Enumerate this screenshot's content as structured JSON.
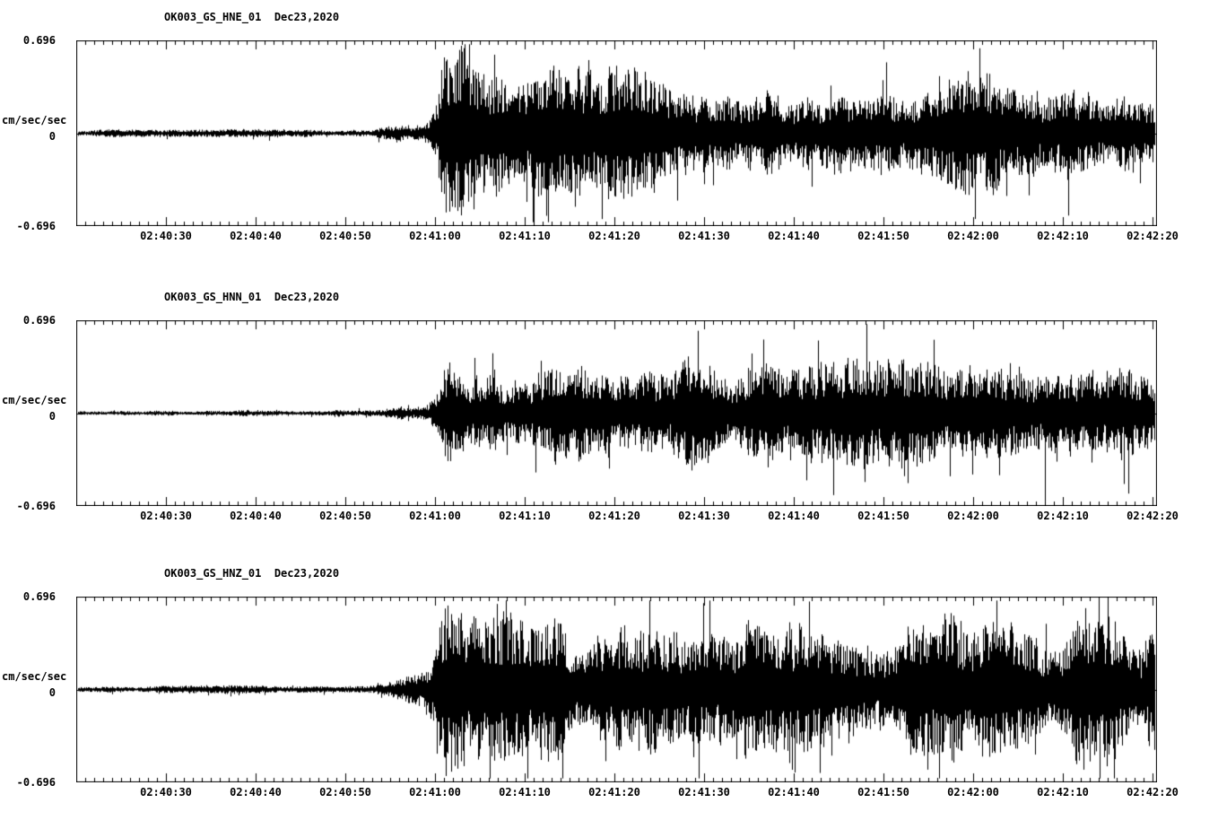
{
  "page": {
    "background": "#ffffff",
    "trace_color": "#000000"
  },
  "chart_data": [
    {
      "type": "line",
      "title": "OK003_GS_HNE_01  Dec23,2020",
      "ylabel": "cm/sec/sec",
      "ylim": [
        -0.696,
        0.696
      ],
      "ytick_labels": {
        "top": "0.696",
        "mid": "0",
        "bottom": "-0.696"
      },
      "x_tick_labels": [
        "02:40:30",
        "02:40:40",
        "02:40:50",
        "02:41:00",
        "02:41:10",
        "02:41:20",
        "02:41:30",
        "02:41:40",
        "02:41:50",
        "02:42:00",
        "02:42:10",
        "02:42:20"
      ],
      "x_axis": {
        "span_s": 120.5,
        "first_tick_s": 10,
        "tick_interval_s": 10,
        "minor_tick_s": 1,
        "legend": "grid off, ticks top and bottom"
      },
      "trace_color": "#000000",
      "seed": 7,
      "envelope": {
        "t_s": [
          0,
          15,
          25,
          30,
          34,
          37,
          39,
          40,
          41,
          42,
          43,
          45,
          50,
          55,
          60,
          65,
          70,
          75,
          80,
          85,
          90,
          95,
          100,
          105,
          110,
          115,
          120.5
        ],
        "amp": [
          0.02,
          0.021,
          0.023,
          0.028,
          0.04,
          0.06,
          0.095,
          0.18,
          0.5,
          0.55,
          0.44,
          0.4,
          0.42,
          0.35,
          0.38,
          0.32,
          0.34,
          0.36,
          0.31,
          0.34,
          0.32,
          0.35,
          0.33,
          0.31,
          0.32,
          0.34,
          0.31
        ]
      }
    },
    {
      "type": "line",
      "title": "OK003_GS_HNN_01  Dec23,2020",
      "ylabel": "cm/sec/sec",
      "ylim": [
        -0.696,
        0.696
      ],
      "ytick_labels": {
        "top": "0.696",
        "mid": "0",
        "bottom": "-0.696"
      },
      "x_tick_labels": [
        "02:40:30",
        "02:40:40",
        "02:40:50",
        "02:41:00",
        "02:41:10",
        "02:41:20",
        "02:41:30",
        "02:41:40",
        "02:41:50",
        "02:42:00",
        "02:42:10",
        "02:42:20"
      ],
      "x_axis": {
        "span_s": 120.5,
        "first_tick_s": 10,
        "tick_interval_s": 10,
        "minor_tick_s": 1,
        "legend": "grid off, ticks top and bottom"
      },
      "trace_color": "#000000",
      "seed": 13,
      "envelope": {
        "t_s": [
          0,
          15,
          25,
          30,
          34,
          37,
          39,
          40,
          41,
          42,
          43,
          45,
          50,
          55,
          60,
          65,
          70,
          75,
          80,
          85,
          90,
          95,
          100,
          105,
          110,
          115,
          120.5
        ],
        "amp": [
          0.016,
          0.017,
          0.02,
          0.025,
          0.035,
          0.05,
          0.08,
          0.15,
          0.46,
          0.5,
          0.36,
          0.31,
          0.33,
          0.29,
          0.31,
          0.28,
          0.31,
          0.29,
          0.27,
          0.3,
          0.28,
          0.31,
          0.29,
          0.31,
          0.3,
          0.32,
          0.29
        ]
      }
    },
    {
      "type": "line",
      "title": "OK003_GS_HNZ_01  Dec23,2020",
      "ylabel": "cm/sec/sec",
      "ylim": [
        -0.696,
        0.696
      ],
      "ytick_labels": {
        "top": "0.696",
        "mid": "0",
        "bottom": "-0.696"
      },
      "x_tick_labels": [
        "02:40:30",
        "02:40:40",
        "02:40:50",
        "02:41:00",
        "02:41:10",
        "02:41:20",
        "02:41:30",
        "02:41:40",
        "02:41:50",
        "02:42:00",
        "02:42:10",
        "02:42:20"
      ],
      "x_axis": {
        "span_s": 120.5,
        "first_tick_s": 10,
        "tick_interval_s": 10,
        "minor_tick_s": 1,
        "legend": "grid off, ticks top and bottom"
      },
      "trace_color": "#000000",
      "seed": 29,
      "envelope": {
        "t_s": [
          0,
          15,
          25,
          30,
          34,
          37,
          39,
          40,
          41,
          42,
          43,
          45,
          50,
          55,
          60,
          65,
          70,
          75,
          80,
          85,
          90,
          95,
          100,
          105,
          110,
          115,
          120.5
        ],
        "amp": [
          0.022,
          0.023,
          0.026,
          0.031,
          0.046,
          0.07,
          0.105,
          0.2,
          0.5,
          0.52,
          0.42,
          0.39,
          0.43,
          0.37,
          0.41,
          0.38,
          0.41,
          0.39,
          0.37,
          0.41,
          0.38,
          0.43,
          0.41,
          0.39,
          0.41,
          0.43,
          0.39
        ]
      }
    }
  ]
}
